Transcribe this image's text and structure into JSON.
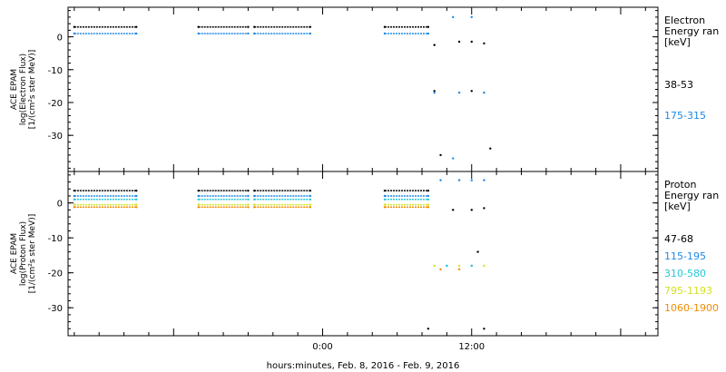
{
  "chart_data": {
    "type": "scatter",
    "xlabel": "hours:minutes, Feb.  8, 2016 - Feb.  9, 2016",
    "x_ticks": [
      {
        "label": "0:00",
        "hours": 0
      },
      {
        "label": "12:00",
        "hours": 12
      }
    ],
    "xlim_hours": [
      -20.5,
      27
    ],
    "panels": [
      {
        "id": "electron",
        "ylabel": [
          "ACE EPAM",
          "log(Electron Flux)",
          "[1/(cm²s ster MeV)]"
        ],
        "ylim": [
          -41,
          9
        ],
        "yticks": [
          0,
          -10,
          -20,
          -30
        ],
        "legend_title": [
          "Electron",
          "Energy ran",
          "[keV]"
        ],
        "series": [
          {
            "name": "38-53",
            "color": "#000000",
            "points": [
              [
                -20,
                3
              ],
              [
                -15,
                3
              ],
              [
                -10,
                3
              ],
              [
                -6,
                3
              ],
              [
                -5.5,
                3
              ],
              [
                -1,
                3
              ],
              [
                5,
                3
              ],
              [
                8.5,
                3
              ],
              [
                9,
                -2.5
              ],
              [
                11,
                -1.5
              ],
              [
                12,
                -1.5
              ],
              [
                13,
                -2
              ],
              [
                9,
                -16.5
              ],
              [
                12,
                -16.5
              ],
              [
                9.5,
                -36
              ],
              [
                13.5,
                -34
              ]
            ]
          },
          {
            "name": "175-315",
            "color": "#1e88e5",
            "points": [
              [
                -20,
                1
              ],
              [
                -15,
                1
              ],
              [
                -10,
                1
              ],
              [
                -6,
                1
              ],
              [
                -5.5,
                1
              ],
              [
                -1,
                1
              ],
              [
                5,
                1
              ],
              [
                8.5,
                1
              ],
              [
                10.5,
                6
              ],
              [
                12,
                6
              ],
              [
                9,
                -17
              ],
              [
                11,
                -17
              ],
              [
                13,
                -17
              ],
              [
                10.5,
                -37
              ]
            ]
          }
        ]
      },
      {
        "id": "proton",
        "ylabel": [
          "ACE EPAM",
          "log(Proton Flux)",
          "[1/(cm²s ster MeV)]"
        ],
        "ylim": [
          -38,
          9
        ],
        "yticks": [
          0,
          -10,
          -20,
          -30
        ],
        "legend_title": [
          "Proton",
          "Energy ran",
          "[keV]"
        ],
        "series": [
          {
            "name": "47-68",
            "color": "#000000",
            "points": [
              [
                -20,
                3.5
              ],
              [
                -15,
                3.5
              ],
              [
                -10,
                3.5
              ],
              [
                -6,
                3.5
              ],
              [
                -5.5,
                3.5
              ],
              [
                -1,
                3.5
              ],
              [
                5,
                3.5
              ],
              [
                8.5,
                3.5
              ],
              [
                10.5,
                -2
              ],
              [
                12,
                -2
              ],
              [
                13,
                -1.5
              ],
              [
                12.5,
                -14
              ],
              [
                8.5,
                -36
              ],
              [
                13,
                -36
              ]
            ]
          },
          {
            "name": "115-195",
            "color": "#1e88e5",
            "points": [
              [
                -20,
                2
              ],
              [
                -15,
                2
              ],
              [
                -10,
                2
              ],
              [
                -6,
                2
              ],
              [
                -5.5,
                2
              ],
              [
                -1,
                2
              ],
              [
                5,
                2
              ],
              [
                8.5,
                2
              ],
              [
                9.5,
                6.5
              ],
              [
                11,
                6.5
              ],
              [
                12,
                6.5
              ],
              [
                13,
                6.5
              ],
              [
                10,
                -18
              ],
              [
                12,
                -18
              ]
            ]
          },
          {
            "name": "310-580",
            "color": "#26c6da",
            "points": [
              [
                -20,
                1
              ],
              [
                -15,
                1
              ],
              [
                -10,
                1
              ],
              [
                -6,
                1
              ],
              [
                -5.5,
                1
              ],
              [
                -1,
                1
              ],
              [
                5,
                1
              ],
              [
                8.5,
                1
              ],
              [
                10,
                -18
              ],
              [
                12,
                -18
              ]
            ]
          },
          {
            "name": "795-1193",
            "color": "#d4e01e",
            "points": [
              [
                -20,
                -0.5
              ],
              [
                -15,
                -0.5
              ],
              [
                -10,
                -0.5
              ],
              [
                -6,
                -0.5
              ],
              [
                -5.5,
                -0.5
              ],
              [
                -1,
                -0.5
              ],
              [
                5,
                -0.5
              ],
              [
                8.5,
                -0.5
              ],
              [
                9,
                -18
              ],
              [
                11,
                -18
              ],
              [
                13,
                -18
              ]
            ]
          },
          {
            "name": "1060-1900",
            "color": "#f08c00",
            "points": [
              [
                -20,
                -1.2
              ],
              [
                -15,
                -1.2
              ],
              [
                -10,
                -1.2
              ],
              [
                -6,
                -1.2
              ],
              [
                -5.5,
                -1.2
              ],
              [
                -1,
                -1.2
              ],
              [
                5,
                -1.2
              ],
              [
                8.5,
                -1.2
              ],
              [
                9.5,
                -19
              ],
              [
                11,
                -19
              ]
            ]
          }
        ]
      }
    ]
  }
}
